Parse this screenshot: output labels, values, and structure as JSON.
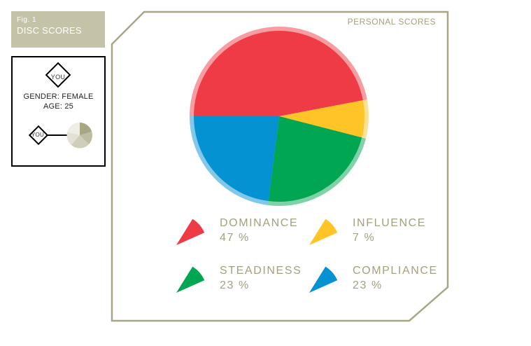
{
  "figure": {
    "label": "Fig. 1",
    "title": "DISC SCORES"
  },
  "profile": {
    "marker_label": "YOU",
    "gender_line": "GENDER: FEMALE",
    "age_line": "AGE: 25",
    "small_marker_label": "YOU"
  },
  "section_title": "PERSONAL SCORES",
  "colors": {
    "frame": "#a8a684",
    "dominance": "#ef3b46",
    "influence": "#ffc428",
    "steadiness": "#00a651",
    "compliance": "#0592d2",
    "label": "#a3a17e"
  },
  "chart_data": {
    "type": "pie",
    "title": "",
    "slices": [
      {
        "label": "DOMINANCE",
        "value": 47,
        "value_label": "47 %",
        "color": "#ef3b46"
      },
      {
        "label": "INFLUENCE",
        "value": 7,
        "value_label": "7 %",
        "color": "#ffc428"
      },
      {
        "label": "STEADINESS",
        "value": 23,
        "value_label": "23 %",
        "color": "#00a651"
      },
      {
        "label": "COMPLIANCE",
        "value": 23,
        "value_label": "23 %",
        "color": "#0592d2"
      }
    ]
  }
}
